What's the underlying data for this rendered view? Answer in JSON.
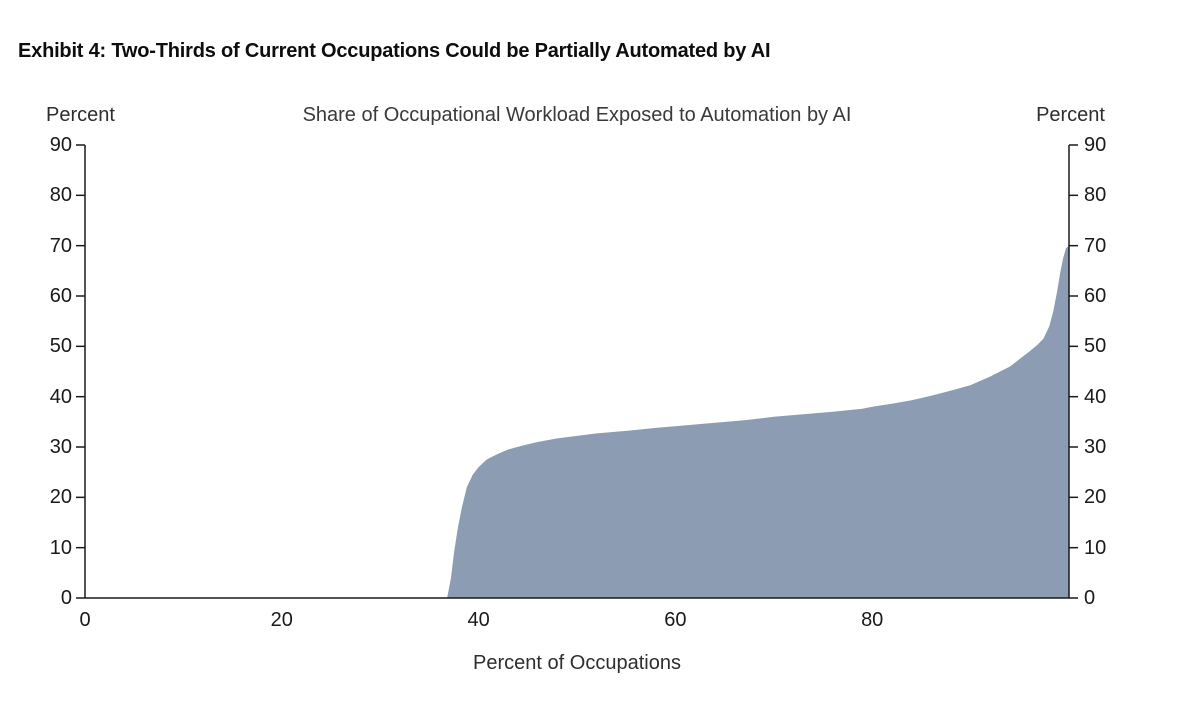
{
  "chart_data": {
    "type": "area",
    "exhibit_title": "Exhibit 4: Two-Thirds of Current Occupations Could be Partially Automated by AI",
    "title": "Share of Occupational Workload Exposed to Automation by AI",
    "xlabel": "Percent of Occupations",
    "ylabel_left": "Percent",
    "ylabel_right": "Percent",
    "xlim": [
      0,
      100
    ],
    "ylim": [
      0,
      90
    ],
    "x_ticks": [
      0,
      20,
      40,
      60,
      80
    ],
    "y_ticks": [
      0,
      10,
      20,
      30,
      40,
      50,
      60,
      70,
      80,
      90
    ],
    "grid": false,
    "legend": "none",
    "fill_color": "#8b9cb3",
    "axis_color": "#1a1a1a",
    "points": [
      [
        0,
        0
      ],
      [
        36.8,
        0
      ],
      [
        37.2,
        4
      ],
      [
        37.5,
        9
      ],
      [
        37.9,
        14
      ],
      [
        38.3,
        18
      ],
      [
        38.8,
        22
      ],
      [
        39.4,
        24.5
      ],
      [
        40,
        26
      ],
      [
        40.8,
        27.5
      ],
      [
        41.8,
        28.5
      ],
      [
        43,
        29.5
      ],
      [
        44.5,
        30.3
      ],
      [
        46,
        31
      ],
      [
        48,
        31.7
      ],
      [
        50,
        32.2
      ],
      [
        52,
        32.7
      ],
      [
        55,
        33.2
      ],
      [
        58,
        33.8
      ],
      [
        61,
        34.3
      ],
      [
        64,
        34.8
      ],
      [
        67,
        35.3
      ],
      [
        70,
        36
      ],
      [
        73,
        36.5
      ],
      [
        76,
        37
      ],
      [
        79,
        37.6
      ],
      [
        80,
        38
      ],
      [
        82,
        38.6
      ],
      [
        84,
        39.3
      ],
      [
        86,
        40.2
      ],
      [
        88,
        41.2
      ],
      [
        90,
        42.3
      ],
      [
        92,
        44
      ],
      [
        93,
        45
      ],
      [
        94,
        46
      ],
      [
        95,
        47.5
      ],
      [
        96,
        49
      ],
      [
        96.8,
        50.3
      ],
      [
        97.4,
        51.5
      ],
      [
        98,
        54
      ],
      [
        98.4,
        57
      ],
      [
        98.8,
        61
      ],
      [
        99.1,
        64.5
      ],
      [
        99.4,
        67.5
      ],
      [
        99.7,
        69.5
      ],
      [
        100,
        70
      ]
    ]
  }
}
